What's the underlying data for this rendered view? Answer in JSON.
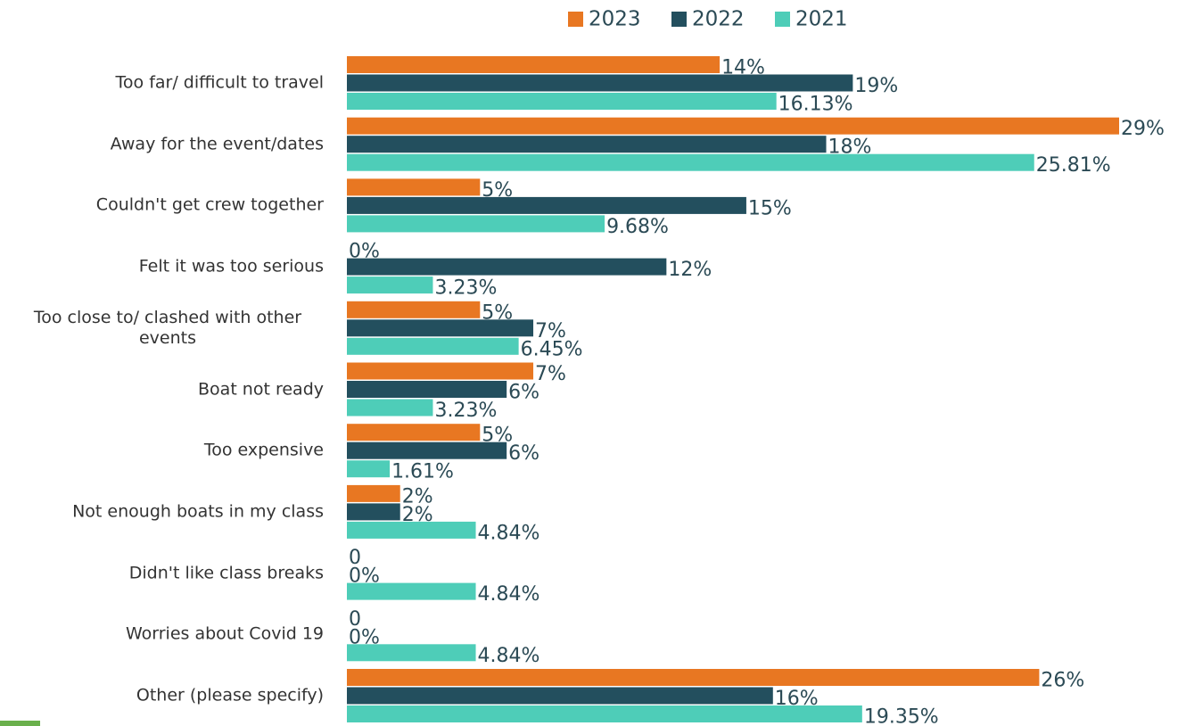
{
  "chart_data": {
    "type": "bar",
    "orientation": "horizontal",
    "categories": [
      "Too far/ difficult to travel",
      "Away for the event/dates",
      "Couldn't get crew together",
      "Felt it was too serious",
      "Too close to/ clashed with other events",
      "Boat not ready",
      "Too expensive",
      "Not enough boats in my class",
      "Didn't like class breaks",
      "Worries about Covid 19",
      "Other (please specify)"
    ],
    "series": [
      {
        "name": "2023",
        "color": "#e87722",
        "values": [
          14,
          29,
          5,
          0,
          5,
          7,
          5,
          2,
          0,
          0,
          26
        ],
        "value_labels": [
          "14%",
          "29%",
          "5%",
          "0%",
          "5%",
          "7%",
          "5%",
          "2%",
          "0",
          "0",
          "26%"
        ]
      },
      {
        "name": "2022",
        "color": "#234f5e",
        "values": [
          19,
          18,
          15,
          12,
          7,
          6,
          6,
          2,
          0,
          0,
          16
        ],
        "value_labels": [
          "19%",
          "18%",
          "15%",
          "12%",
          "7%",
          "6%",
          "6%",
          "2%",
          "0%",
          "0%",
          "16%"
        ]
      },
      {
        "name": "2021",
        "color": "#4ecdb8",
        "values": [
          16.13,
          25.81,
          9.68,
          3.23,
          6.45,
          3.23,
          1.61,
          4.84,
          4.84,
          4.84,
          19.35
        ],
        "value_labels": [
          "16.13%",
          "25.81%",
          "9.68%",
          "3.23%",
          "6.45%",
          "3.23%",
          "1.61%",
          "4.84%",
          "4.84%",
          "4.84%",
          "19.35%"
        ]
      }
    ],
    "legend": "top"
  }
}
